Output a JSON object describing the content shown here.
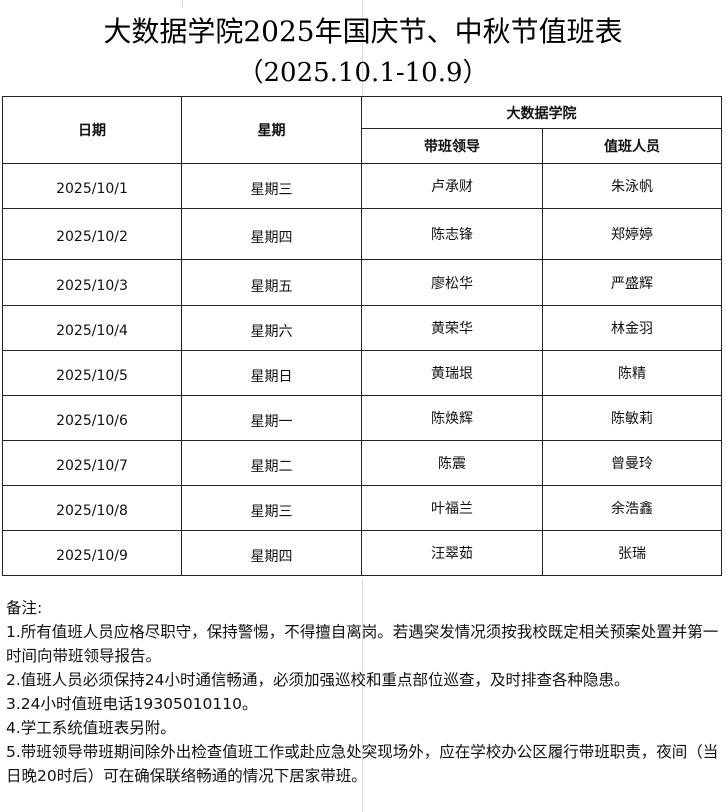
{
  "title": {
    "line1": "大数据学院2025年国庆节、中秋节值班表",
    "line2": "（2025.10.1-10.9）"
  },
  "table": {
    "headers": [
      "日期",
      "星期"
    ],
    "group": "大数据学院",
    "subheaders": [
      "带班领导",
      "值班人员"
    ],
    "rows": [
      [
        "2025/10/1",
        "星期三",
        "卢承财",
        "朱泳帆"
      ],
      [
        "2025/10/2",
        "星期四",
        "陈志锋",
        "郑婷婷"
      ],
      [
        "2025/10/3",
        "星期五",
        "廖松华",
        "严盛辉"
      ],
      [
        "2025/10/4",
        "星期六",
        "黄荣华",
        "林金羽"
      ],
      [
        "2025/10/5",
        "星期日",
        "黄瑞垠",
        "陈精"
      ],
      [
        "2025/10/6",
        "星期一",
        "陈焕辉",
        "陈敏莉"
      ],
      [
        "2025/10/7",
        "星期二",
        "陈震",
        "曾曼玲"
      ],
      [
        "2025/10/8",
        "星期三",
        "叶福兰",
        "余浩鑫"
      ],
      [
        "2025/10/9",
        "星期四",
        "汪翠茹",
        "张瑞"
      ]
    ]
  },
  "notes": {
    "label": "备注:",
    "items": [
      "1.所有值班人员应格尽职守，保持警惕，不得擅自离岗。若遇突发情况须按我校既定相关预案处置并第一时间向带班领导报告。",
      "2.值班人员必须保持24小时通信畅通，必须加强巡校和重点部位巡查，及时排查各种隐患。",
      "3.24小时值班电话19305010110。",
      "4.学工系统值班表另附。",
      "5.带班领导带班期间除外出检查值班工作或赴应急处突现场外，应在学校办公区履行带班职责，夜间（当日晚20时后）可在确保联络畅通的情况下居家带班。"
    ]
  }
}
